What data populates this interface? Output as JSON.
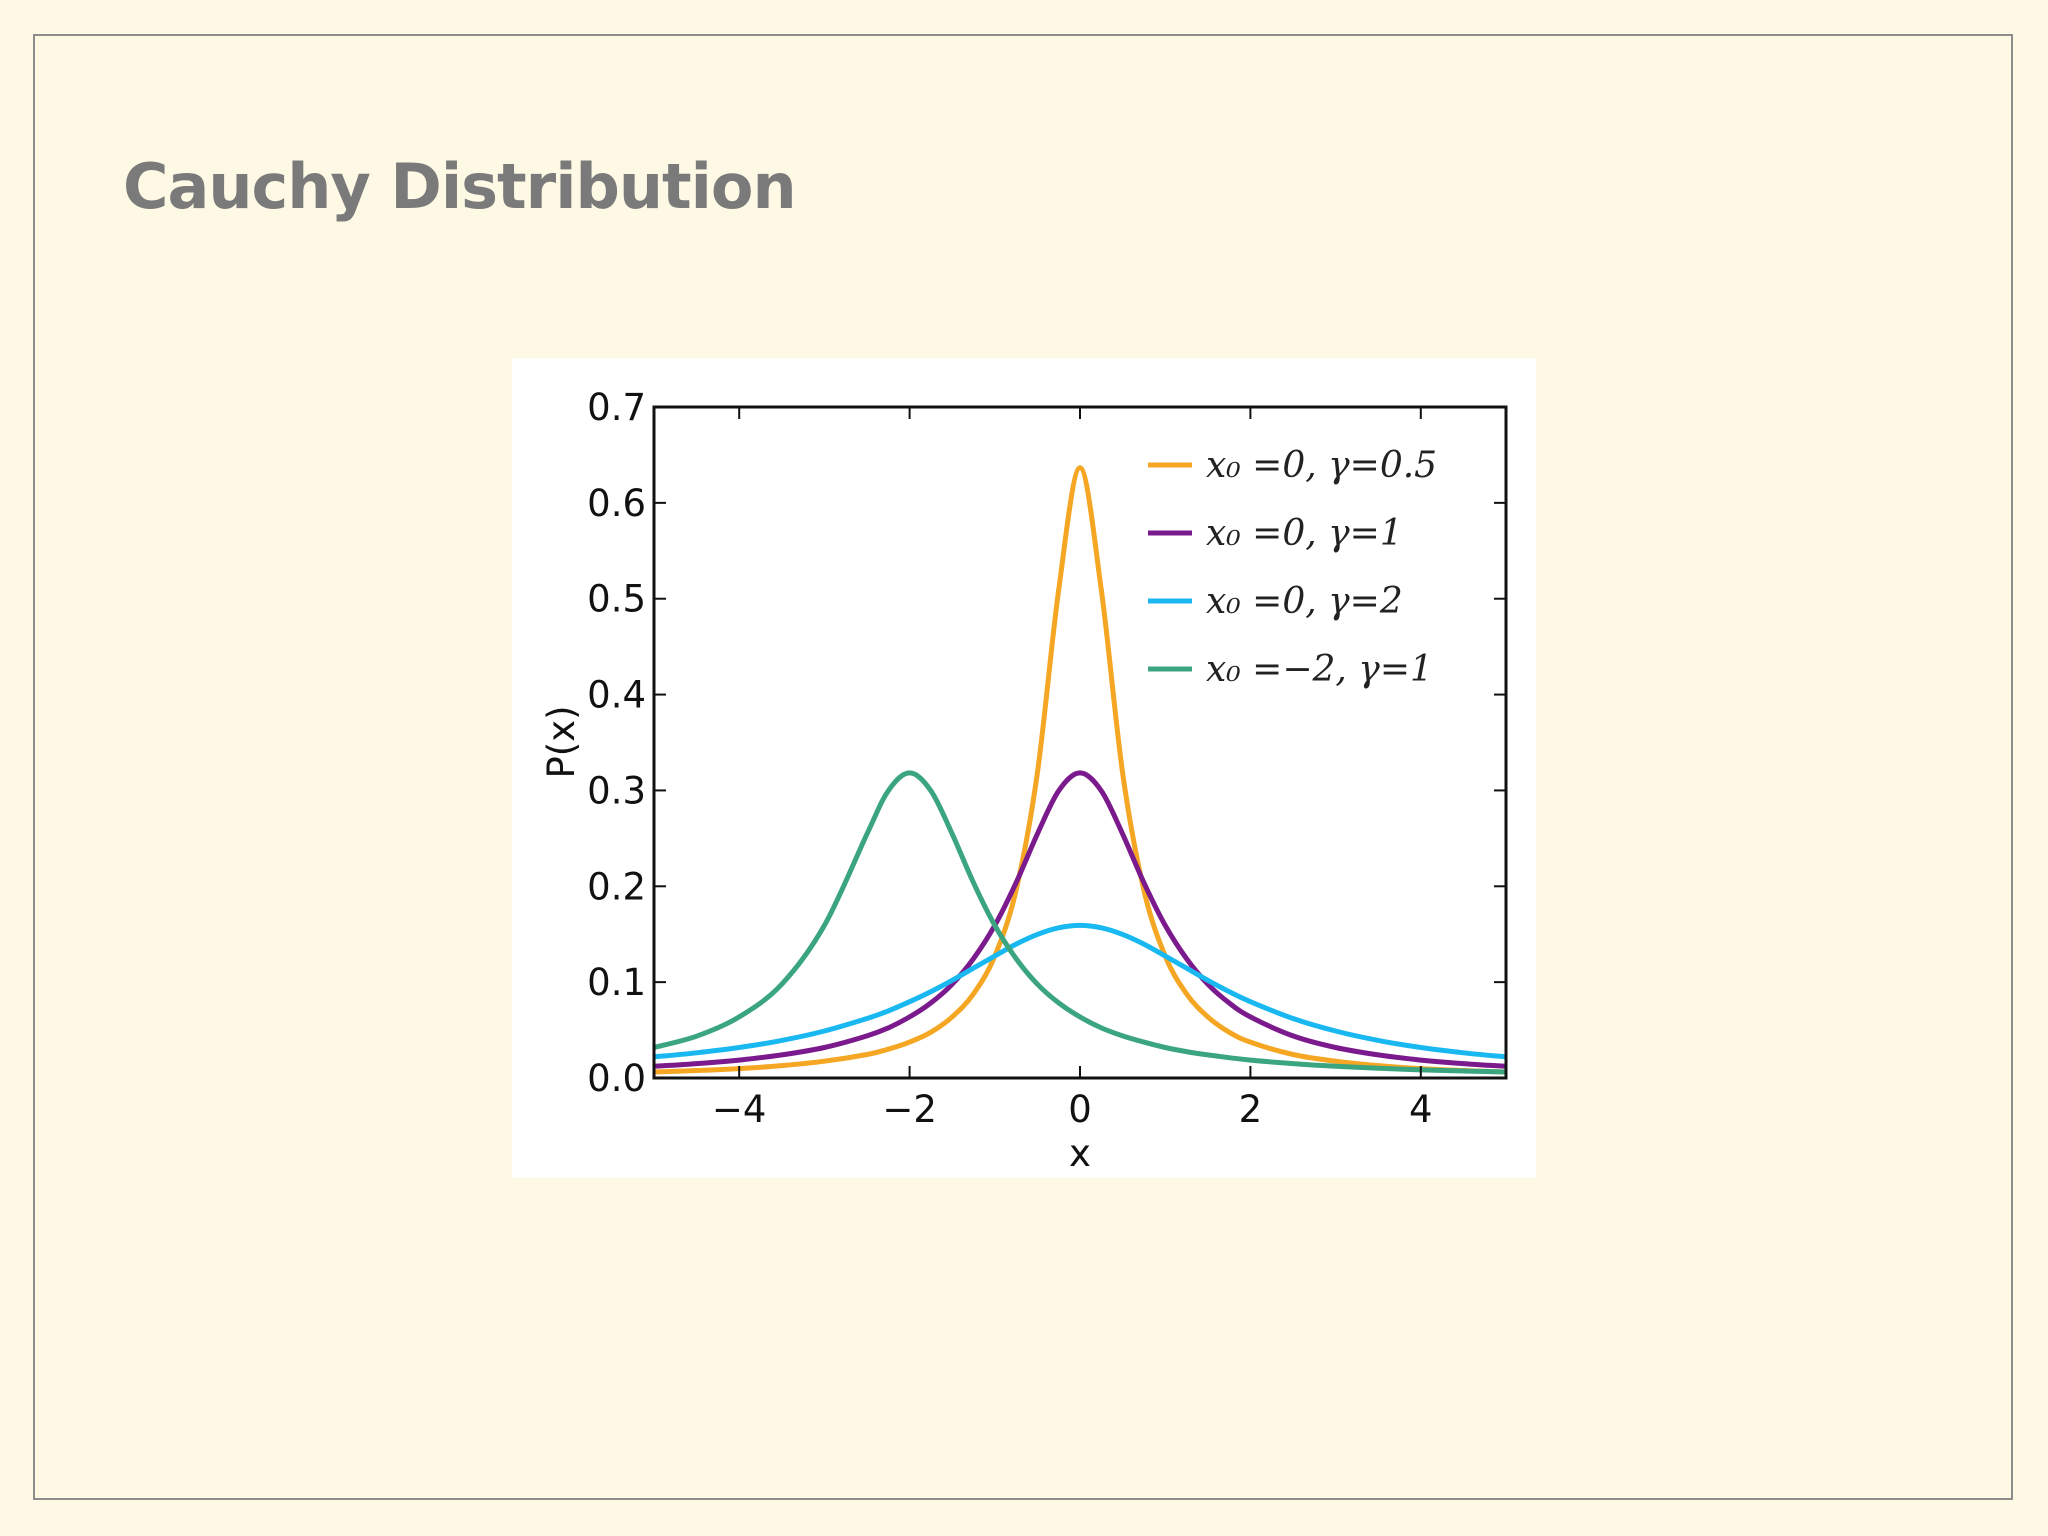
{
  "slide": {
    "title": "Cauchy Distribution",
    "background_color": "#fef9e4",
    "title_color": "#7a7a7a",
    "frame_color": "#8c8c8c"
  },
  "chart_data": {
    "type": "line",
    "title": "",
    "xlabel": "x",
    "ylabel": "P(x)",
    "xlim": [
      -5,
      5
    ],
    "ylim": [
      0,
      0.7
    ],
    "x_ticks": [
      -4,
      -2,
      0,
      2,
      4
    ],
    "x_tick_labels": [
      "−4",
      "−2",
      "0",
      "2",
      "4"
    ],
    "y_ticks": [
      0.0,
      0.1,
      0.2,
      0.3,
      0.4,
      0.5,
      0.6,
      0.7
    ],
    "y_tick_labels": [
      "0.0",
      "0.1",
      "0.2",
      "0.3",
      "0.4",
      "0.5",
      "0.6",
      "0.7"
    ],
    "grid": false,
    "legend_position": "top-right",
    "x": [
      -5,
      -4.5,
      -4,
      -3.5,
      -3,
      -2.5,
      -2.25,
      -2,
      -1.75,
      -1.5,
      -1.25,
      -1,
      -0.75,
      -0.5,
      -0.25,
      0,
      0.25,
      0.5,
      0.75,
      1,
      1.25,
      1.5,
      1.75,
      2,
      2.5,
      3,
      3.5,
      4,
      4.5,
      5
    ],
    "series": [
      {
        "name": "x₀ =0, γ=0.5",
        "color": "#f5a623",
        "values": [
          0.0063,
          0.0078,
          0.0098,
          0.0129,
          0.0175,
          0.0245,
          0.03,
          0.0374,
          0.0478,
          0.0637,
          0.0878,
          0.1273,
          0.1959,
          0.3183,
          0.5093,
          0.6366,
          0.5093,
          0.3183,
          0.1959,
          0.1273,
          0.0878,
          0.0637,
          0.0478,
          0.0374,
          0.0245,
          0.0175,
          0.0129,
          0.0098,
          0.0078,
          0.0063
        ]
      },
      {
        "name": "x₀ =0, γ=1",
        "color": "#7b1a8c",
        "values": [
          0.0122,
          0.015,
          0.0187,
          0.0241,
          0.0318,
          0.0439,
          0.0523,
          0.0637,
          0.0783,
          0.0979,
          0.1246,
          0.1592,
          0.2037,
          0.2546,
          0.2996,
          0.3183,
          0.2996,
          0.2546,
          0.2037,
          0.1592,
          0.1246,
          0.0979,
          0.0783,
          0.0637,
          0.0439,
          0.0318,
          0.0241,
          0.0187,
          0.015,
          0.0122
        ]
      },
      {
        "name": "x₀ =0, γ=2",
        "color": "#1ab8f0",
        "values": [
          0.022,
          0.0263,
          0.0318,
          0.0392,
          0.049,
          0.0621,
          0.07,
          0.0796,
          0.0901,
          0.1019,
          0.1146,
          0.1273,
          0.1397,
          0.1498,
          0.1567,
          0.1592,
          0.1567,
          0.1498,
          0.1397,
          0.1273,
          0.1146,
          0.1019,
          0.0901,
          0.0796,
          0.0621,
          0.049,
          0.0392,
          0.0318,
          0.0263,
          0.022
        ]
      },
      {
        "name": "x₀ =−2, γ=1",
        "color": "#3aa57f",
        "values": [
          0.0318,
          0.0436,
          0.0637,
          0.0979,
          0.1592,
          0.2546,
          0.2996,
          0.3183,
          0.2996,
          0.2546,
          0.2037,
          0.1592,
          0.1246,
          0.0979,
          0.0783,
          0.0637,
          0.0523,
          0.0439,
          0.0374,
          0.0318,
          0.0275,
          0.0241,
          0.0212,
          0.0187,
          0.015,
          0.0122,
          0.0101,
          0.0085,
          0.0073,
          0.0063
        ]
      }
    ]
  }
}
